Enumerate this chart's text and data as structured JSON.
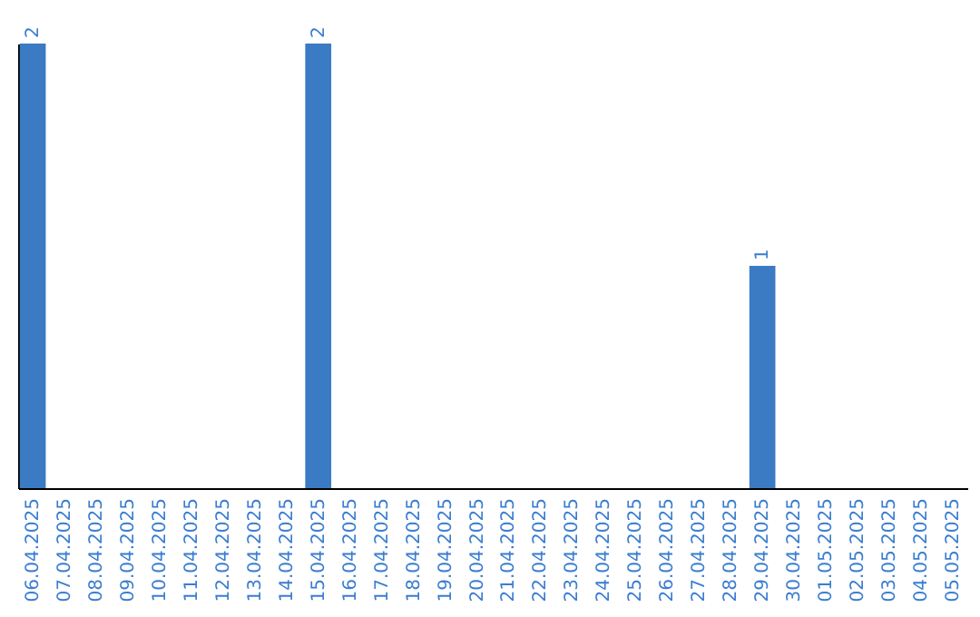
{
  "chart_data": {
    "type": "bar",
    "categories": [
      "06.04.2025",
      "07.04.2025",
      "08.04.2025",
      "09.04.2025",
      "10.04.2025",
      "11.04.2025",
      "12.04.2025",
      "13.04.2025",
      "14.04.2025",
      "15.04.2025",
      "16.04.2025",
      "17.04.2025",
      "18.04.2025",
      "19.04.2025",
      "20.04.2025",
      "21.04.2025",
      "22.04.2025",
      "23.04.2025",
      "24.04.2025",
      "25.04.2025",
      "26.04.2025",
      "27.04.2025",
      "28.04.2025",
      "29.04.2025",
      "30.04.2025",
      "01.05.2025",
      "02.05.2025",
      "03.05.2025",
      "04.05.2025",
      "05.05.2025"
    ],
    "values": [
      2,
      0,
      0,
      0,
      0,
      0,
      0,
      0,
      0,
      2,
      0,
      0,
      0,
      0,
      0,
      0,
      0,
      0,
      0,
      0,
      0,
      0,
      0,
      1,
      0,
      0,
      0,
      0,
      0,
      0
    ],
    "value_labels": [
      "2",
      null,
      null,
      null,
      null,
      null,
      null,
      null,
      null,
      "2",
      null,
      null,
      null,
      null,
      null,
      null,
      null,
      null,
      null,
      null,
      null,
      null,
      null,
      "1",
      null,
      null,
      null,
      null,
      null,
      null
    ],
    "color": "#3a7bc4",
    "grid": false
  }
}
